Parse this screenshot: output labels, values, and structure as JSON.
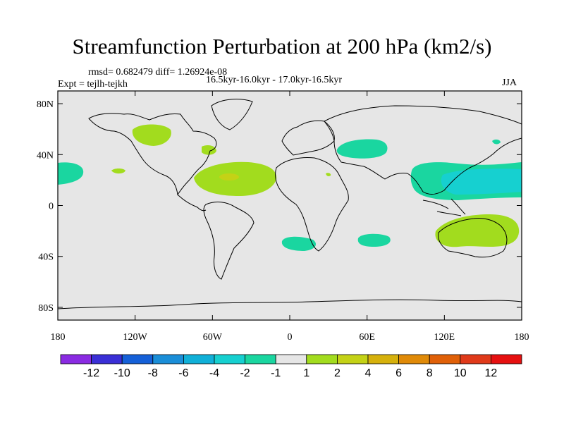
{
  "header": {
    "title": "Streamfunction Perturbation at 200 hPa (km2/s)",
    "stats": "rmsd= 0.682479 diff= 1.26924e-08",
    "experiment": "Expt = tejlh-tejkh",
    "period": "16.5kyr-16.0kyr - 17.0kyr-16.5kyr",
    "season": "JJA"
  },
  "map": {
    "background": "#e6e6e6",
    "lon_ticks": [
      "180",
      "120W",
      "60W",
      "0",
      "60E",
      "120E",
      "180"
    ],
    "lon_values": [
      -180,
      -120,
      -60,
      0,
      60,
      120,
      180
    ],
    "lat_ticks": [
      "80N",
      "40N",
      "0",
      "40S",
      "80S"
    ],
    "lat_values": [
      80,
      40,
      0,
      -40,
      -80
    ]
  },
  "colorbar": {
    "labels": [
      "-12",
      "-10",
      "-8",
      "-6",
      "-4",
      "-2",
      "-1",
      "1",
      "2",
      "4",
      "6",
      "8",
      "10",
      "12"
    ],
    "colors": [
      "#8a2be2",
      "#3a2fd6",
      "#1560d8",
      "#1a8ed8",
      "#10b0d8",
      "#16d0d0",
      "#1ad6a0",
      "#e6e6e6",
      "#a2dc1e",
      "#c4d216",
      "#d6b10c",
      "#e08a08",
      "#e06008",
      "#e03a1a",
      "#e61010"
    ]
  },
  "anomalies": [
    {
      "name": "north-pacific-east-anomaly",
      "level": "-1 to -2",
      "color": "#1ad6a0"
    },
    {
      "name": "north-america-anomaly",
      "level": "1 to 2",
      "color": "#a2dc1e"
    },
    {
      "name": "atlantic-anomaly",
      "level": "1 to 2",
      "color": "#a2dc1e"
    },
    {
      "name": "atlantic-core-anomaly",
      "level": "2 to 4",
      "color": "#c4d216"
    },
    {
      "name": "eurasia-anomaly",
      "level": "-1 to -2",
      "color": "#1ad6a0"
    },
    {
      "name": "west-pacific-anomaly",
      "level": "-1 to -4",
      "color": "#16d0d0"
    },
    {
      "name": "australia-anomaly",
      "level": "1 to 2",
      "color": "#a2dc1e"
    },
    {
      "name": "south-america-anomaly",
      "level": "-1 to -2",
      "color": "#1ad6a0"
    },
    {
      "name": "south-indian-anomaly",
      "level": "-1 to -2",
      "color": "#1ad6a0"
    }
  ]
}
